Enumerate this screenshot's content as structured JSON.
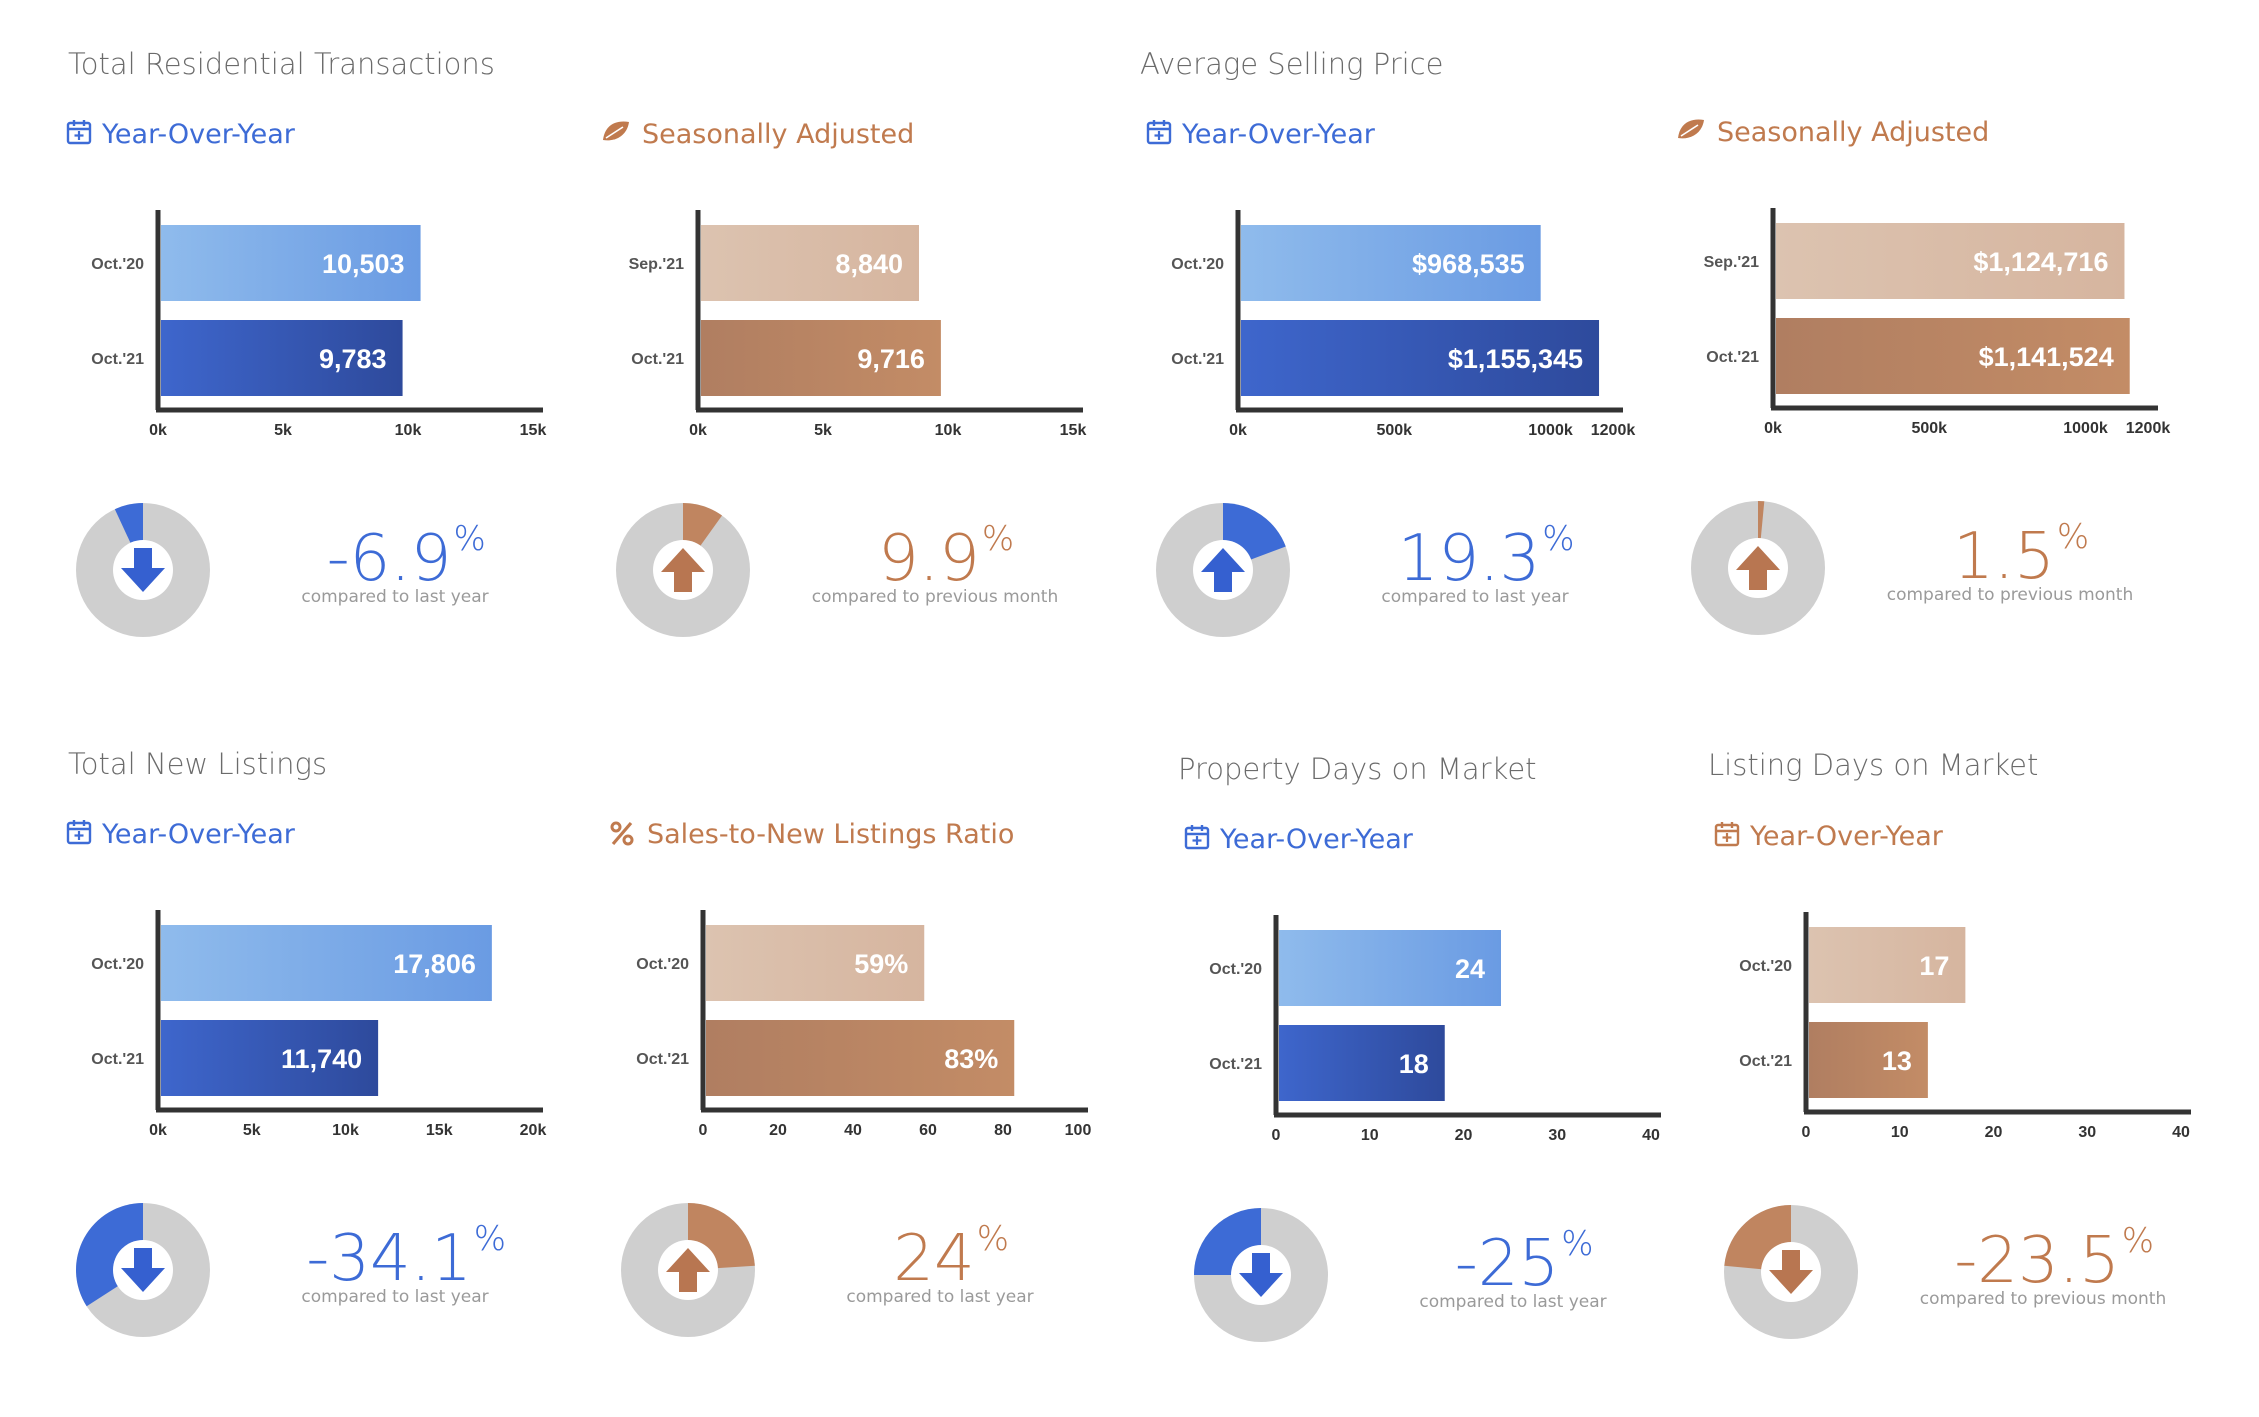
{
  "colors": {
    "blue_light": "#7eaee8",
    "blue_dark": "#3556c0",
    "brown_light": "#d9bca8",
    "brown_dark": "#b98462",
    "blue_text": "#3d6bd6",
    "brown_text": "#c07a4e",
    "donut_track": "#cfcfcf",
    "axis": "#333333"
  },
  "sections": {
    "transactions": "Total Residential Transactions",
    "price": "Average Selling Price",
    "listings": "Total New Listings",
    "property_dom": "Property Days on Market",
    "listing_dom": "Listing Days on Market"
  },
  "chart_data": [
    {
      "type": "bar",
      "section": "Total Residential Transactions",
      "subtitle": "Year-Over-Year",
      "icon": "calendar-icon",
      "theme": "blue",
      "categories": [
        "Oct.'20",
        "Oct.'21"
      ],
      "values": [
        10503,
        9783
      ],
      "value_labels": [
        "10,503",
        "9,783"
      ],
      "xlim": [
        0,
        15000
      ],
      "ticks": [
        0,
        5000,
        10000,
        15000
      ],
      "tick_labels": [
        "0k",
        "5k",
        "10k",
        "15k"
      ],
      "change": {
        "value": "-6.9",
        "unit": "%",
        "direction": "down",
        "fraction": 0.069,
        "caption": "compared to last year"
      }
    },
    {
      "type": "bar",
      "section": "",
      "subtitle": "Seasonally Adjusted",
      "icon": "leaf-icon",
      "theme": "brown",
      "categories": [
        "Sep.'21",
        "Oct.'21"
      ],
      "values": [
        8840,
        9716
      ],
      "value_labels": [
        "8,840",
        "9,716"
      ],
      "xlim": [
        0,
        15000
      ],
      "ticks": [
        0,
        5000,
        10000,
        15000
      ],
      "tick_labels": [
        "0k",
        "5k",
        "10k",
        "15k"
      ],
      "change": {
        "value": "9.9",
        "unit": "%",
        "direction": "up",
        "fraction": 0.099,
        "caption": "compared to previous month"
      }
    },
    {
      "type": "bar",
      "section": "Average Selling Price",
      "subtitle": "Year-Over-Year",
      "icon": "calendar-icon",
      "theme": "blue",
      "categories": [
        "Oct.'20",
        "Oct.'21"
      ],
      "values": [
        968535,
        1155345
      ],
      "value_labels": [
        "$968,535",
        "$1,155,345"
      ],
      "xlim": [
        0,
        1200000
      ],
      "ticks": [
        0,
        500000,
        1000000,
        1200000
      ],
      "tick_labels": [
        "0k",
        "500k",
        "1000k",
        "1200k"
      ],
      "change": {
        "value": "19.3",
        "unit": "%",
        "direction": "up",
        "fraction": 0.193,
        "caption": "compared to last year"
      }
    },
    {
      "type": "bar",
      "section": "",
      "subtitle": "Seasonally Adjusted",
      "icon": "leaf-icon",
      "theme": "brown",
      "categories": [
        "Sep.'21",
        "Oct.'21"
      ],
      "values": [
        1124716,
        1141524
      ],
      "value_labels": [
        "$1,124,716",
        "$1,141,524"
      ],
      "xlim": [
        0,
        1200000
      ],
      "ticks": [
        0,
        500000,
        1000000,
        1200000
      ],
      "tick_labels": [
        "0k",
        "500k",
        "1000k",
        "1200k"
      ],
      "change": {
        "value": "1.5",
        "unit": "%",
        "direction": "up",
        "fraction": 0.015,
        "caption": "compared to previous month"
      }
    },
    {
      "type": "bar",
      "section": "Total New Listings",
      "subtitle": "Year-Over-Year",
      "icon": "calendar-icon",
      "theme": "blue",
      "categories": [
        "Oct.'20",
        "Oct.'21"
      ],
      "values": [
        17806,
        11740
      ],
      "value_labels": [
        "17,806",
        "11,740"
      ],
      "xlim": [
        0,
        20000
      ],
      "ticks": [
        0,
        5000,
        10000,
        15000,
        20000
      ],
      "tick_labels": [
        "0k",
        "5k",
        "10k",
        "15k",
        "20k"
      ],
      "change": {
        "value": "-34.1",
        "unit": "%",
        "direction": "down",
        "fraction": 0.341,
        "caption": "compared to last year"
      }
    },
    {
      "type": "bar",
      "section": "",
      "subtitle": "Sales-to-New Listings Ratio",
      "icon": "percent-icon",
      "theme": "brown",
      "categories": [
        "Oct.'20",
        "Oct.'21"
      ],
      "values": [
        59,
        83
      ],
      "value_labels": [
        "59%",
        "83%"
      ],
      "xlim": [
        0,
        100
      ],
      "ticks": [
        0,
        20,
        40,
        60,
        80,
        100
      ],
      "tick_labels": [
        "0",
        "20",
        "40",
        "60",
        "80",
        "100"
      ],
      "change": {
        "value": "24",
        "unit": "%",
        "direction": "up",
        "fraction": 0.24,
        "caption": "compared to last year"
      }
    },
    {
      "type": "bar",
      "section": "Property Days on Market",
      "subtitle": "Year-Over-Year",
      "icon": "calendar-icon",
      "theme": "blue",
      "categories": [
        "Oct.'20",
        "Oct.'21"
      ],
      "values": [
        24,
        18
      ],
      "value_labels": [
        "24",
        "18"
      ],
      "xlim": [
        0,
        40
      ],
      "ticks": [
        0,
        10,
        20,
        30,
        40
      ],
      "tick_labels": [
        "0",
        "10",
        "20",
        "30",
        "40"
      ],
      "change": {
        "value": "-25",
        "unit": "%",
        "direction": "down",
        "fraction": 0.25,
        "caption": "compared to last year"
      }
    },
    {
      "type": "bar",
      "section": "Listing Days on Market",
      "subtitle": "Year-Over-Year",
      "icon": "calendar-icon",
      "theme": "brown",
      "categories": [
        "Oct.'20",
        "Oct.'21"
      ],
      "values": [
        17,
        13
      ],
      "value_labels": [
        "17",
        "13"
      ],
      "xlim": [
        0,
        40
      ],
      "ticks": [
        0,
        10,
        20,
        30,
        40
      ],
      "tick_labels": [
        "0",
        "10",
        "20",
        "30",
        "40"
      ],
      "change": {
        "value": "-23.5",
        "unit": "%",
        "direction": "down",
        "fraction": 0.235,
        "caption": "compared to previous month"
      }
    }
  ]
}
